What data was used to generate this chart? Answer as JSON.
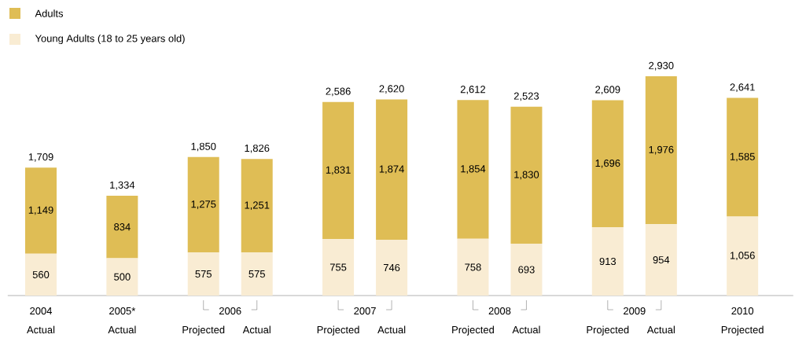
{
  "chart_data": {
    "type": "bar",
    "stacked": true,
    "legend": "top left",
    "categories": [
      "Actual",
      "Actual",
      "Projected",
      "Actual",
      "Projected",
      "Actual",
      "Projected",
      "Actual",
      "Projected",
      "Actual",
      "Projected"
    ],
    "annotations": [
      "2004",
      "2005*",
      "2006",
      "2007",
      "2008",
      "2009",
      "2010"
    ],
    "series": [
      {
        "name": "Young Adults (18 to 25 years old)",
        "color": "#f9ecd3",
        "values": [
          560,
          500,
          575,
          575,
          755,
          746,
          758,
          693,
          913,
          954,
          1056
        ],
        "value_labels": [
          "560",
          "500",
          "575",
          "575",
          "755",
          "746",
          "758",
          "693",
          "913",
          "954",
          "1,056"
        ]
      },
      {
        "name": "Adults",
        "color": "#dfbd55",
        "values": [
          1149,
          834,
          1275,
          1251,
          1831,
          1874,
          1854,
          1830,
          1696,
          1976,
          1585
        ],
        "value_labels": [
          "1,149",
          "834",
          "1,275",
          "1,251",
          "1,831",
          "1,874",
          "1,854",
          "1,830",
          "1,696",
          "1,976",
          "1,585"
        ]
      }
    ],
    "totals": [
      "1,709",
      "1,334",
      "1,850",
      "1,826",
      "2,586",
      "2,620",
      "2,612",
      "2,523",
      "2,609",
      "2,930",
      "2,641"
    ]
  }
}
